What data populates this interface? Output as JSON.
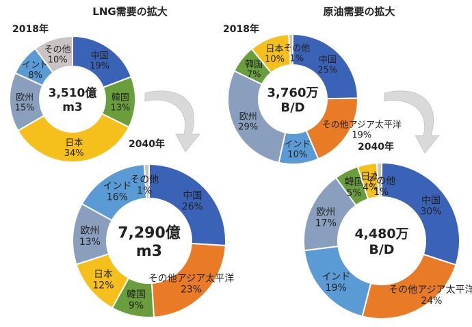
{
  "lng": {
    "title": "LNG需要の拡大",
    "year_2018": "2018年",
    "year_2040": "2040年"
  },
  "oil": {
    "title": "原油需要の拡大",
    "year_2018": "2018年",
    "year_2040": "2040年"
  },
  "colors": {
    "中国": "#3A63B7",
    "韓国": "#6A9E3C",
    "日本": "#F5BF1C",
    "欧州": "#8A9FBD",
    "インド": "#5B9BD5",
    "その他": "#C9C3C3",
    "その他アジア太平洋": "#E97A26",
    "arrow": "#D9D9D9"
  },
  "chart_data": [
    {
      "type": "pie",
      "title": "LNG需要の拡大",
      "subtitle": "2018年",
      "center_lines": [
        "3,510億",
        "m3"
      ],
      "slices": [
        {
          "label": "中国",
          "value": 19
        },
        {
          "label": "韓国",
          "value": 13
        },
        {
          "label": "日本",
          "value": 34
        },
        {
          "label": "欧州",
          "value": 15
        },
        {
          "label": "インド",
          "value": 8
        },
        {
          "label": "その他",
          "value": 10
        }
      ]
    },
    {
      "type": "pie",
      "title": "LNG需要の拡大",
      "subtitle": "2040年",
      "center_lines": [
        "7,290億",
        "m3"
      ],
      "slices": [
        {
          "label": "中国",
          "value": 26
        },
        {
          "label": "その他アジア太平洋",
          "value": 23
        },
        {
          "label": "韓国",
          "value": 9
        },
        {
          "label": "日本",
          "value": 12
        },
        {
          "label": "欧州",
          "value": 13
        },
        {
          "label": "インド",
          "value": 16
        },
        {
          "label": "その他",
          "value": 1
        }
      ]
    },
    {
      "type": "pie",
      "title": "原油需要の拡大",
      "subtitle": "2018年",
      "center_lines": [
        "3,760万",
        "B/D"
      ],
      "slices": [
        {
          "label": "中国",
          "value": 25
        },
        {
          "label": "その他アジア太平洋",
          "value": 19
        },
        {
          "label": "インド",
          "value": 10
        },
        {
          "label": "欧州",
          "value": 29
        },
        {
          "label": "韓国",
          "value": 7
        },
        {
          "label": "日本",
          "value": 10
        },
        {
          "label": "その他",
          "value": 1
        }
      ]
    },
    {
      "type": "pie",
      "title": "原油需要の拡大",
      "subtitle": "2040年",
      "center_lines": [
        "4,480万",
        "B/D"
      ],
      "slices": [
        {
          "label": "中国",
          "value": 30
        },
        {
          "label": "その他アジア太平洋",
          "value": 24
        },
        {
          "label": "インド",
          "value": 19
        },
        {
          "label": "欧州",
          "value": 17
        },
        {
          "label": "韓国",
          "value": 5
        },
        {
          "label": "日本",
          "value": 4
        },
        {
          "label": "その他",
          "value": 1
        }
      ]
    }
  ]
}
